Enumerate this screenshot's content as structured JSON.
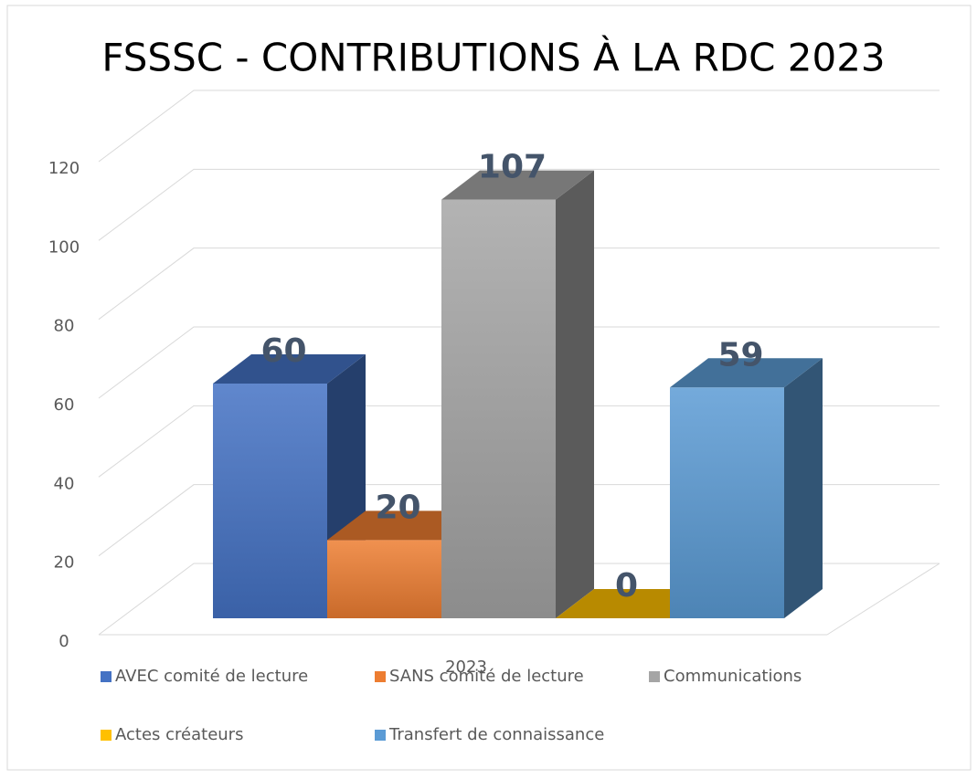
{
  "chart_data": {
    "type": "bar3d",
    "title": "FSSSC - CONTRIBUTIONS À LA RDC 2023",
    "categories": [
      "2023"
    ],
    "series": [
      {
        "name": "AVEC comité de lecture",
        "color": "#4472c4",
        "values": [
          60
        ]
      },
      {
        "name": "SANS comité de lecture",
        "color": "#ed7d31",
        "values": [
          20
        ]
      },
      {
        "name": "Communications",
        "color": "#a5a5a5",
        "values": [
          107
        ]
      },
      {
        "name": "Actes créateurs",
        "color": "#ffc000",
        "values": [
          0
        ]
      },
      {
        "name": "Transfert de connaissance",
        "color": "#5b9bd5",
        "values": [
          59
        ]
      }
    ],
    "ylim": [
      0,
      120
    ],
    "yticks": [
      0,
      20,
      40,
      60,
      80,
      100,
      120
    ],
    "grid": true,
    "legend": "bottom"
  }
}
